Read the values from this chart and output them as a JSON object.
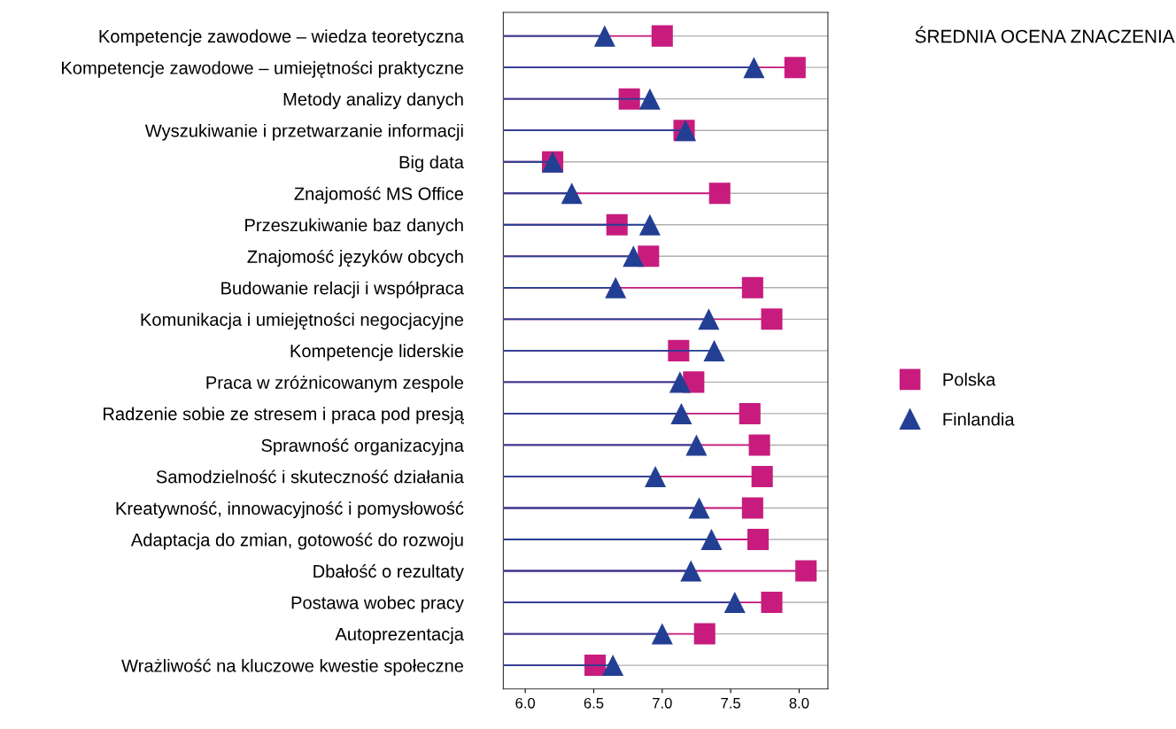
{
  "chart_data": {
    "type": "lollipop",
    "orientation": "horizontal",
    "title": "ŚREDNIA OCENA ZNACZENIA",
    "categories": [
      "Kompetencje zawodowe – wiedza teoretyczna",
      "Kompetencje zawodowe – umiejętności praktyczne",
      "Metody analizy danych",
      "Wyszukiwanie i przetwarzanie informacji",
      "Big data",
      "Znajomość MS Office",
      "Przeszukiwanie baz danych",
      "Znajomość języków obcych",
      "Budowanie relacji i współpraca",
      "Komunikacja i umiejętności negocjacyjne",
      "Kompetencje liderskie",
      "Praca w zróżnicowanym zespole",
      "Radzenie sobie ze stresem i praca pod presją",
      "Sprawność organizacyjna",
      "Samodzielność i skuteczność działania",
      "Kreatywność, innowacyjność i pomysłowość",
      "Adaptacja do zmian, gotowość do rozwoju",
      "Dbałość o rezultaty",
      "Postawa wobec pracy",
      "Autoprezentacja",
      "Wrażliwość na kluczowe kwestie społeczne"
    ],
    "series": [
      {
        "name": "Polska",
        "color": "#c71c7e",
        "marker": "square",
        "values": [
          7.0,
          7.97,
          6.76,
          7.16,
          6.2,
          7.42,
          6.67,
          6.9,
          7.66,
          7.8,
          7.12,
          7.23,
          7.64,
          7.71,
          7.73,
          7.66,
          7.7,
          8.05,
          7.8,
          7.31,
          6.51
        ]
      },
      {
        "name": "Finlandia",
        "color": "#233f93",
        "marker": "triangle",
        "values": [
          6.58,
          7.67,
          6.91,
          7.17,
          6.2,
          6.34,
          6.91,
          6.79,
          6.66,
          7.34,
          7.38,
          7.13,
          7.14,
          7.25,
          6.95,
          7.27,
          7.36,
          7.21,
          7.53,
          7.0,
          6.64
        ]
      }
    ],
    "xlim": [
      5.84,
      8.21
    ],
    "xticks": [
      {
        "value": 6.0,
        "label": "6.0"
      },
      {
        "value": 6.5,
        "label": "6.5"
      },
      {
        "value": 7.0,
        "label": "7.0"
      },
      {
        "value": 7.5,
        "label": "7.5"
      },
      {
        "value": 8.0,
        "label": "8.0"
      }
    ],
    "grid": "y",
    "legend": "right"
  }
}
